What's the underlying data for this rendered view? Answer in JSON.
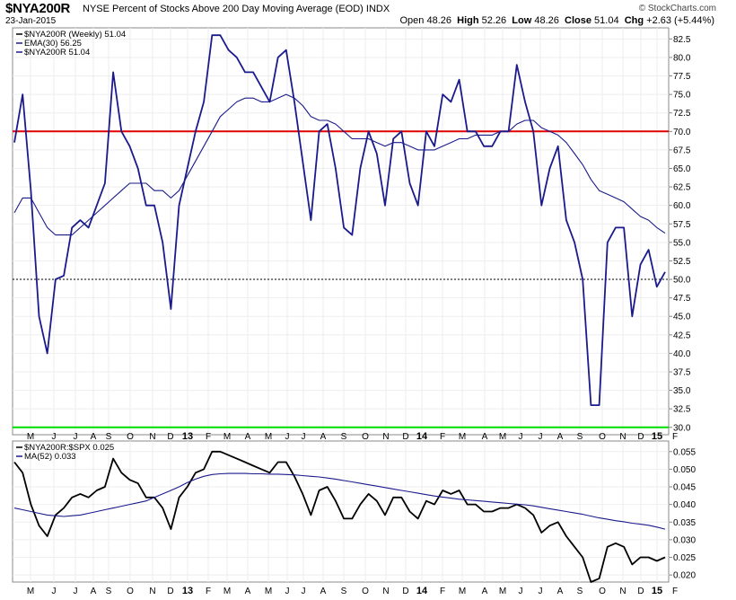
{
  "header": {
    "symbol": "$NYA200R",
    "description": "NYSE Percent of Stocks Above 200 Day Moving Average (EOD) INDX",
    "date": "23-Jan-2015",
    "brand": "© StockCharts.com",
    "open_label": "Open",
    "open": "48.26",
    "high_label": "High",
    "high": "52.26",
    "low_label": "Low",
    "low": "48.26",
    "close_label": "Close",
    "close": "51.04",
    "chg_label": "Chg",
    "chg": "+2.63 (+5.44%)"
  },
  "chart_data": [
    {
      "type": "line",
      "legend": [
        {
          "text": "$NYA200R (Weekly) 51.04",
          "color": "#000000"
        },
        {
          "text": "EMA(30) 56.25",
          "color": "#1a1a8c"
        },
        {
          "text": "$NYA200R 51.04",
          "color": "#1a1a8c"
        }
      ],
      "ylim": [
        29,
        84
      ],
      "yticks": [
        "30.0",
        "32.5",
        "35.0",
        "37.5",
        "40.0",
        "42.5",
        "45.0",
        "47.5",
        "50.0",
        "52.5",
        "55.0",
        "57.5",
        "60.0",
        "62.5",
        "65.0",
        "67.5",
        "70.0",
        "72.5",
        "75.0",
        "77.5",
        "80.0",
        "82.5"
      ],
      "reference_lines": [
        {
          "value": 70,
          "color": "#e00000"
        },
        {
          "value": 30,
          "color": "#00dd00"
        },
        {
          "value": 50,
          "color": "#000000",
          "style": "dotted"
        }
      ],
      "x_labels": [
        "M",
        "J",
        "J",
        "A",
        "S",
        "O",
        "N",
        "D",
        "13",
        "F",
        "M",
        "A",
        "M",
        "J",
        "J",
        "A",
        "S",
        "O",
        "N",
        "D",
        "14",
        "F",
        "M",
        "A",
        "M",
        "J",
        "J",
        "A",
        "S",
        "O",
        "N",
        "D",
        "15",
        "F"
      ],
      "series": [
        {
          "name": "$NYA200R",
          "color": "#1a1a8c",
          "values": [
            68.5,
            75,
            62,
            45,
            40,
            50,
            50.5,
            57,
            58,
            57,
            60,
            63,
            78,
            70,
            68,
            65,
            60,
            60,
            55,
            46,
            60,
            65,
            70,
            74,
            83,
            83,
            81,
            80,
            78,
            78,
            76,
            74,
            80,
            81,
            74,
            66,
            58,
            70,
            71,
            65,
            57,
            56,
            65,
            70,
            67,
            60,
            69,
            70,
            63,
            60,
            70,
            68,
            75,
            74,
            77,
            70,
            70,
            68,
            68,
            70,
            70,
            79,
            74,
            70,
            60,
            65,
            68,
            58,
            55,
            50,
            33,
            33,
            55,
            57,
            57,
            45,
            52,
            54,
            49,
            51
          ]
        },
        {
          "name": "EMA(30)",
          "color": "#1a1a8c",
          "values": [
            59,
            61,
            61,
            59,
            57,
            56,
            56,
            56,
            57,
            58,
            59,
            60,
            61,
            62,
            63,
            63,
            63,
            62,
            62,
            61,
            62,
            64,
            66,
            68,
            70,
            72,
            73,
            74,
            74.5,
            74.5,
            74,
            74,
            74.5,
            75,
            74.5,
            73.5,
            72,
            71.5,
            71.5,
            71,
            70,
            69,
            69,
            69,
            68.5,
            68,
            68.5,
            68.5,
            68,
            67.5,
            67.5,
            67.5,
            68,
            68.5,
            69,
            69,
            69.5,
            69.5,
            69.5,
            70,
            70,
            71,
            71.5,
            71.5,
            70.5,
            70,
            69.5,
            68.5,
            67,
            65.5,
            63.5,
            62,
            61.5,
            61,
            60.5,
            59.5,
            58.5,
            58,
            57,
            56.25
          ]
        }
      ]
    },
    {
      "type": "line",
      "legend": [
        {
          "text": "$NYA200R:$SPX 0.025",
          "color": "#000000"
        },
        {
          "text": "MA(52) 0.033",
          "color": "#1a1a8c"
        }
      ],
      "ylim": [
        0.018,
        0.058
      ],
      "yticks": [
        "0.020",
        "0.025",
        "0.030",
        "0.035",
        "0.040",
        "0.045",
        "0.050",
        "0.055"
      ],
      "x_labels": [
        "M",
        "J",
        "J",
        "A",
        "S",
        "O",
        "N",
        "D",
        "13",
        "F",
        "M",
        "A",
        "M",
        "J",
        "J",
        "A",
        "S",
        "O",
        "N",
        "D",
        "14",
        "F",
        "M",
        "A",
        "M",
        "J",
        "J",
        "A",
        "S",
        "O",
        "N",
        "D",
        "15",
        "F"
      ],
      "series": [
        {
          "name": "$NYA200R:$SPX",
          "color": "#000000",
          "values": [
            0.052,
            0.049,
            0.04,
            0.034,
            0.031,
            0.037,
            0.039,
            0.042,
            0.043,
            0.042,
            0.044,
            0.045,
            0.053,
            0.049,
            0.047,
            0.046,
            0.042,
            0.042,
            0.039,
            0.033,
            0.042,
            0.045,
            0.049,
            0.05,
            0.055,
            0.055,
            0.054,
            0.053,
            0.052,
            0.051,
            0.05,
            0.049,
            0.052,
            0.052,
            0.048,
            0.043,
            0.037,
            0.044,
            0.045,
            0.041,
            0.036,
            0.036,
            0.04,
            0.043,
            0.041,
            0.037,
            0.042,
            0.042,
            0.038,
            0.036,
            0.041,
            0.04,
            0.044,
            0.043,
            0.044,
            0.04,
            0.04,
            0.038,
            0.038,
            0.039,
            0.039,
            0.04,
            0.039,
            0.037,
            0.032,
            0.034,
            0.035,
            0.031,
            0.028,
            0.025,
            0.018,
            0.019,
            0.028,
            0.029,
            0.028,
            0.023,
            0.025,
            0.025,
            0.024,
            0.025
          ]
        },
        {
          "name": "MA(52)",
          "color": "#1a1a8c",
          "values": [
            0.039,
            0.0385,
            0.038,
            0.0375,
            0.037,
            0.0368,
            0.0366,
            0.0368,
            0.037,
            0.0375,
            0.038,
            0.0385,
            0.039,
            0.0395,
            0.04,
            0.0405,
            0.041,
            0.042,
            0.043,
            0.044,
            0.045,
            0.0462,
            0.0472,
            0.048,
            0.0485,
            0.0487,
            0.0488,
            0.0488,
            0.0488,
            0.0487,
            0.0487,
            0.0486,
            0.0486,
            0.0485,
            0.0484,
            0.0482,
            0.048,
            0.0478,
            0.0475,
            0.0472,
            0.0468,
            0.0464,
            0.046,
            0.0456,
            0.0452,
            0.0448,
            0.0444,
            0.044,
            0.0436,
            0.0432,
            0.0428,
            0.0424,
            0.0421,
            0.0418,
            0.0415,
            0.0413,
            0.0411,
            0.0409,
            0.0407,
            0.0405,
            0.0403,
            0.0401,
            0.0399,
            0.0396,
            0.0392,
            0.0388,
            0.0384,
            0.038,
            0.0376,
            0.0372,
            0.0367,
            0.0362,
            0.0358,
            0.0354,
            0.0351,
            0.0347,
            0.0344,
            0.0341,
            0.0336,
            0.033
          ]
        }
      ]
    }
  ]
}
